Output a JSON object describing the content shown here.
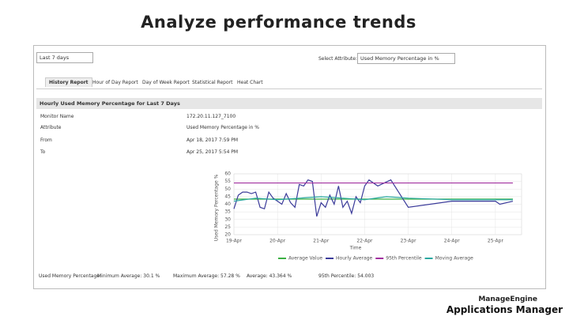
{
  "header": {
    "title": "Analyze performance trends"
  },
  "toolbar": {
    "period": "Last 7 days",
    "attribute_label": "Select Attribute:",
    "attribute": "Used Memory Percentage in %"
  },
  "tabs": [
    "History Report",
    "Hour of Day Report",
    "Day of Week Report",
    "Statistical Report",
    "Heat Chart"
  ],
  "section": {
    "title": "Hourly Used Memory Percentage for Last 7 Days"
  },
  "details": [
    [
      "Monitor Name",
      "172.20.11.127_7100"
    ],
    [
      "Attribute",
      "Used Memory Percentage in %"
    ],
    [
      "From",
      "Apr 18, 2017 7:59 PM"
    ],
    [
      "To",
      "Apr 25, 2017 5:54 PM"
    ]
  ],
  "summary": [
    "Used Memory Percentage:",
    "Minimum Average: 30.1 %",
    "Maximum Average: 57.28 %",
    "Average: 43.364 %",
    "95th Percentile: 54.003"
  ],
  "logo": {
    "brand": "ManageEngine",
    "product": "Applications Manager"
  },
  "chart_data": {
    "type": "line",
    "y_label": "Used Memory Percentage %",
    "x_label": "Time",
    "xlim": [
      0,
      6.6
    ],
    "xticks": [
      {
        "value": 0,
        "label": "19-Apr"
      },
      {
        "value": 1,
        "label": "20-Apr"
      },
      {
        "value": 2,
        "label": "21-Apr"
      },
      {
        "value": 3,
        "label": "22-Apr"
      },
      {
        "value": 4,
        "label": "23-Apr"
      },
      {
        "value": 5,
        "label": "24-Apr"
      },
      {
        "value": 6,
        "label": "25-Apr"
      }
    ],
    "ylim": [
      20,
      60
    ],
    "yticks": [
      20,
      25,
      30,
      35,
      40,
      45,
      50,
      55,
      60
    ],
    "grid": true,
    "series": [
      {
        "name": "Average Value",
        "color": "#3cb043",
        "x": [
          0,
          6.4
        ],
        "values": [
          43.364,
          43.364
        ]
      },
      {
        "name": "Hourly Average",
        "color": "#3b3b9a",
        "x": [
          0,
          0.1,
          0.2,
          0.3,
          0.4,
          0.5,
          0.6,
          0.7,
          0.8,
          0.9,
          1.0,
          1.1,
          1.2,
          1.3,
          1.4,
          1.5,
          1.6,
          1.7,
          1.8,
          1.9,
          2.0,
          2.1,
          2.2,
          2.3,
          2.4,
          2.5,
          2.6,
          2.7,
          2.8,
          2.9,
          3.0,
          3.1,
          3.3,
          3.6,
          4.0,
          5.0,
          5.5,
          6.0,
          6.1,
          6.4
        ],
        "values": [
          37,
          46,
          48,
          48,
          47,
          48,
          38,
          37,
          48,
          44,
          42,
          40,
          47,
          41,
          38,
          53,
          52,
          56,
          55,
          32,
          41,
          38,
          46,
          40,
          52,
          38,
          42,
          34,
          45,
          41,
          52,
          56,
          52,
          56,
          38,
          42,
          42,
          42,
          40,
          42
        ]
      },
      {
        "name": "95th Percentile",
        "color": "#a1309f",
        "x": [
          0,
          6.4
        ],
        "values": [
          54.003,
          54.003
        ]
      },
      {
        "name": "Moving Average",
        "color": "#2aa8a0",
        "x": [
          0,
          0.5,
          1.0,
          1.5,
          2.0,
          2.5,
          3.0,
          3.5,
          4.0,
          5.0,
          6.0,
          6.4
        ],
        "values": [
          42,
          44,
          43,
          44,
          45,
          44,
          43,
          45,
          44,
          43,
          43,
          43
        ]
      }
    ]
  }
}
